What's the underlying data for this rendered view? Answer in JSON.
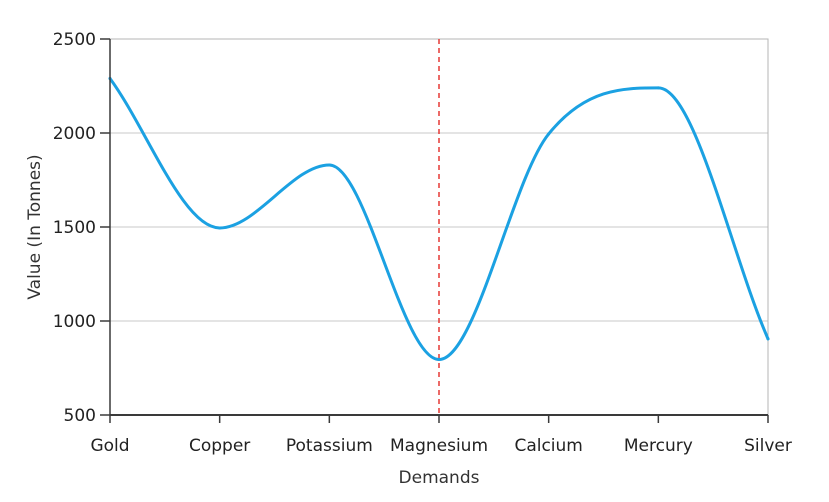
{
  "chart_data": {
    "type": "line",
    "title": "",
    "xlabel": "Demands",
    "ylabel": "Value (In Tonnes)",
    "categories": [
      "Gold",
      "Copper",
      "Potassium",
      "Magnesium",
      "Calcium",
      "Mercury",
      "Silver"
    ],
    "series": [
      {
        "values": [
          2290,
          1495,
          1830,
          795,
          1995,
          2240,
          905
        ],
        "color": "#1ba1e2"
      }
    ],
    "ylim": [
      500,
      2500
    ],
    "yticks": [
      500,
      1000,
      1500,
      2000,
      2500
    ],
    "grid": "horizontal",
    "legend": "none",
    "annotation": {
      "type": "vertical-dashed-line",
      "category": "Magnesium",
      "color": "#e53935"
    }
  }
}
